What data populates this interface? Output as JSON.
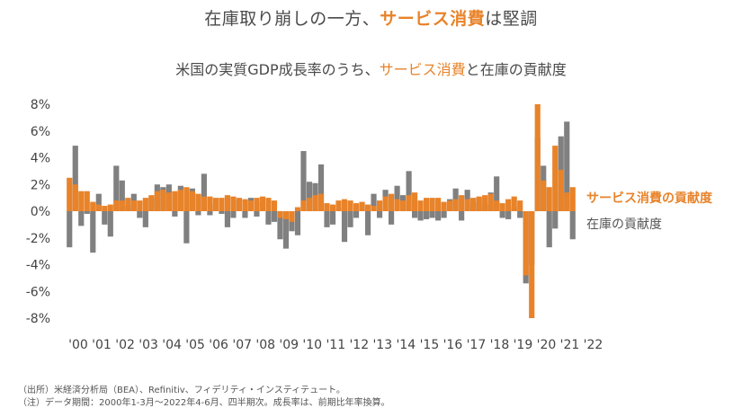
{
  "header": {
    "title_part1": "在庫取り崩し",
    "title_part2": "の一方、",
    "title_part3": "サービス消費",
    "title_part4": "は堅調",
    "subtitle_part1": "米国の実質GDP成長率のうち、",
    "subtitle_part2": "サービス消費",
    "subtitle_part3": "と",
    "subtitle_part4": "在庫",
    "subtitle_part5": "の貢献度"
  },
  "colors": {
    "services": "#e8832a",
    "inventory": "#808080",
    "text": "#444444"
  },
  "notes": {
    "source": "（出所）米経済分析局（BEA）、Refinitiv、フィデリティ・インスティテュート。",
    "note": "（注）データ期間：2000年1-3月～2022年4-6月、四半期次。成長率は、前期比年率換算。"
  },
  "chart_data": {
    "type": "bar",
    "ylim": [
      -8,
      8
    ],
    "yticks": [
      8,
      6,
      4,
      2,
      0,
      -2,
      -4,
      -6,
      -8
    ],
    "ytick_labels": [
      "8%",
      "6%",
      "4%",
      "2%",
      "0%",
      "-2%",
      "-4%",
      "-6%",
      "-8%"
    ],
    "year_labels": [
      "'00",
      "'01",
      "'02",
      "'03",
      "'04",
      "'05",
      "'06",
      "'07",
      "'08",
      "'09",
      "'10",
      "'11",
      "'12",
      "'13",
      "'14",
      "'15",
      "'16",
      "'17",
      "'18",
      "'19",
      "'20",
      "'21",
      "'22"
    ],
    "series": [
      {
        "name": "サービス消費の貢献度",
        "values": [
          2.5,
          2.0,
          1.5,
          1.5,
          0.7,
          0.5,
          0.4,
          0.5,
          0.8,
          0.8,
          1.0,
          0.8,
          0.8,
          1.0,
          1.2,
          1.5,
          1.6,
          1.4,
          1.5,
          1.6,
          1.8,
          1.5,
          1.3,
          1.1,
          1.1,
          1.0,
          1.0,
          1.2,
          1.1,
          1.0,
          0.9,
          0.8,
          1.0,
          1.1,
          1.0,
          0.8,
          -0.5,
          -0.6,
          -0.8,
          0.3,
          0.8,
          1.0,
          1.2,
          1.3,
          0.6,
          0.5,
          0.8,
          0.9,
          0.8,
          0.6,
          0.7,
          0.5,
          0.4,
          0.8,
          1.1,
          1.3,
          0.9,
          0.8,
          1.2,
          1.4,
          0.8,
          1.0,
          1.0,
          1.0,
          0.7,
          0.8,
          0.9,
          1.2,
          0.9,
          1.0,
          1.1,
          1.2,
          1.3,
          0.8,
          0.6,
          0.9,
          1.1,
          0.8,
          -4.8,
          -8.0,
          8.0,
          2.3,
          1.8,
          4.9,
          3.1,
          1.4,
          1.8
        ],
        "color": "#e8832a"
      },
      {
        "name": "在庫の貢献度",
        "values": [
          -2.7,
          4.9,
          -1.1,
          -0.2,
          -3.1,
          1.3,
          -1.0,
          -1.9,
          3.4,
          2.3,
          0.4,
          1.3,
          -0.5,
          -1.2,
          1.0,
          2.0,
          1.8,
          2.0,
          -0.4,
          1.9,
          -2.4,
          1.7,
          -0.3,
          2.8,
          -0.3,
          0.5,
          -0.2,
          -1.2,
          -0.5,
          0.8,
          -0.5,
          1.0,
          -0.4,
          0.7,
          -1.0,
          -0.8,
          -2.1,
          -2.8,
          -1.5,
          -1.8,
          4.5,
          2.2,
          2.1,
          3.5,
          -1.2,
          -1.0,
          0.3,
          -2.3,
          -1.2,
          -0.5,
          0.5,
          -1.8,
          1.3,
          -0.5,
          1.6,
          -1.0,
          1.9,
          1.2,
          3.0,
          -0.5,
          -0.7,
          -0.6,
          -0.5,
          -0.7,
          -0.5,
          0.9,
          1.7,
          -0.7,
          1.6,
          0.6,
          1.0,
          0.5,
          1.4,
          2.6,
          -0.5,
          -0.6,
          0.3,
          -0.5,
          -5.4,
          -4.0,
          5.5,
          3.4,
          -2.7,
          -1.3,
          5.6,
          6.7,
          -2.1
        ]
      }
    ]
  }
}
